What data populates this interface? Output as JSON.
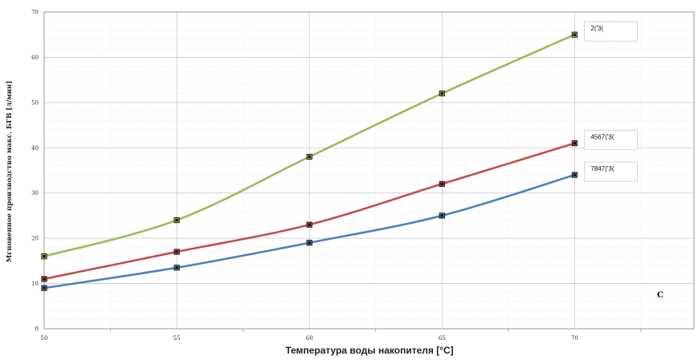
{
  "chart_data": {
    "type": "line",
    "xlabel": "Температура воды накопителя [°C]",
    "ylabel": "Мгновенное производство макс. БГВ [л/мин]",
    "xlim": [
      50,
      74.5
    ],
    "ylim": [
      0,
      70
    ],
    "x_ticks": [
      50,
      55,
      60,
      65,
      70
    ],
    "y_ticks": [
      0,
      10,
      20,
      30,
      40,
      50,
      60,
      70
    ],
    "x": [
      50,
      55,
      60,
      65,
      70
    ],
    "grid": true,
    "series": [
      {
        "name": "2('3(",
        "color": "#9bbb59",
        "values": [
          16,
          24,
          38,
          52,
          65
        ]
      },
      {
        "name": "4567('3(",
        "color": "#c0504d",
        "values": [
          11,
          17,
          23,
          32,
          41
        ]
      },
      {
        "name": "7847('3(",
        "color": "#4f81bd",
        "values": [
          9,
          13.5,
          19,
          25,
          34
        ]
      }
    ],
    "annotation": "C"
  }
}
